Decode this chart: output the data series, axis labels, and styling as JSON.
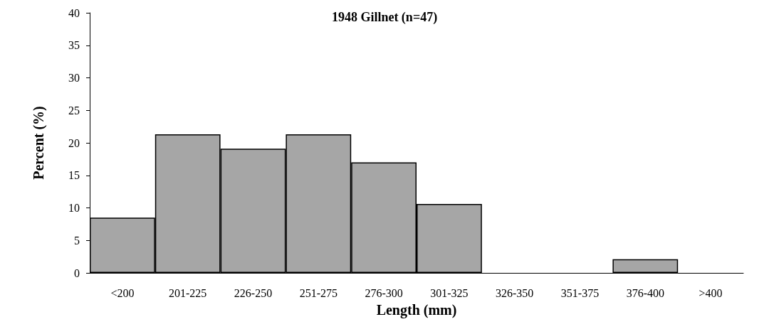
{
  "chart_data": {
    "type": "bar",
    "title": "1948 Gillnet (n=47)",
    "xlabel": "Length (mm)",
    "ylabel": "Percent (%)",
    "categories": [
      "<200",
      "201-225",
      "226-250",
      "251-275",
      "276-300",
      "301-325",
      "326-350",
      "351-375",
      "376-400",
      ">400"
    ],
    "values": [
      8.5,
      21.3,
      19.1,
      21.3,
      17.0,
      10.6,
      0,
      0,
      2.1,
      0
    ],
    "color": "#a6a6a6",
    "ylim": [
      0,
      40
    ],
    "yticks": [
      0,
      5,
      10,
      15,
      20,
      25,
      30,
      35,
      40
    ],
    "grid": false
  }
}
